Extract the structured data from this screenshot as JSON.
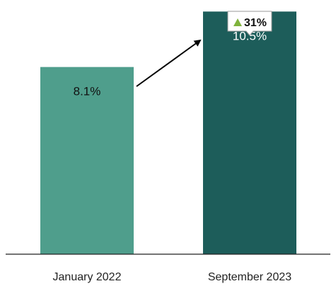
{
  "chart_data": {
    "type": "bar",
    "categories": [
      "January 2022",
      "September 2023"
    ],
    "values": [
      8.1,
      10.5
    ],
    "value_labels": [
      "8.1%",
      "10.5%"
    ],
    "unit": "%",
    "ylim": [
      0,
      11
    ],
    "grid": false,
    "title": "",
    "xlabel": "",
    "ylabel": "",
    "bar_colors": [
      "#4f9e8c",
      "#1d5d5a"
    ],
    "label_colors": [
      "#111111",
      "#ffffff"
    ],
    "annotation": {
      "text": "31%",
      "icon": "triangle-up-icon",
      "icon_color": "#7fb33c",
      "arrow": "from January 2022 bar to September 2023 bar"
    }
  }
}
